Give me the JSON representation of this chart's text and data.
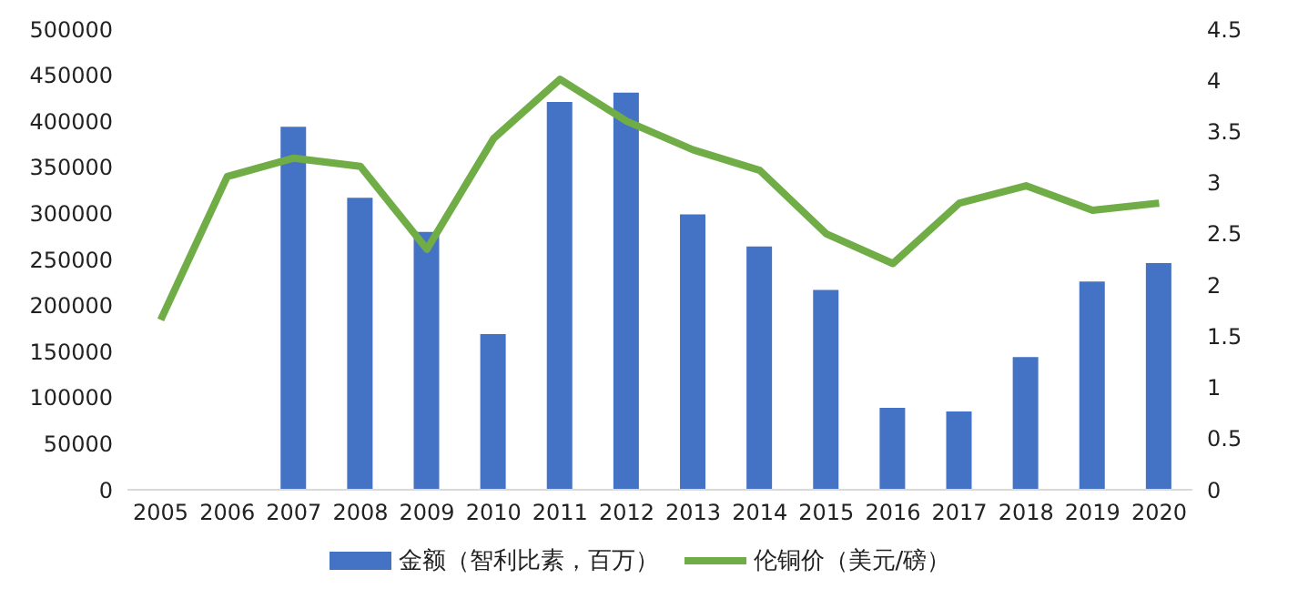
{
  "chart_data": {
    "type": "bar",
    "categories": [
      "2005",
      "2006",
      "2007",
      "2008",
      "2009",
      "2010",
      "2011",
      "2012",
      "2013",
      "2014",
      "2015",
      "2016",
      "2017",
      "2018",
      "2019",
      "2020"
    ],
    "series": [
      {
        "name": "金额（智利比素，百万）",
        "color": "#4472c4",
        "values": [
          null,
          null,
          394000,
          317000,
          280000,
          169000,
          421000,
          431000,
          299000,
          264000,
          217000,
          89000,
          85000,
          144000,
          226000,
          246000
        ]
      },
      {
        "name": "伦铜价（美元/磅）",
        "type": "line",
        "axis": "y2",
        "color": "#70ad47",
        "values": [
          1.66,
          3.06,
          3.24,
          3.16,
          2.35,
          3.43,
          4.01,
          3.6,
          3.32,
          3.12,
          2.5,
          2.21,
          2.8,
          2.97,
          2.73,
          2.8
        ]
      }
    ],
    "ylim": [
      0,
      500000
    ],
    "yticks": [
      0,
      50000,
      100000,
      150000,
      200000,
      250000,
      300000,
      350000,
      400000,
      450000,
      500000
    ],
    "y2lim": [
      0,
      4.5
    ],
    "y2ticks": [
      0,
      0.5,
      1,
      1.5,
      2,
      2.5,
      3,
      3.5,
      4,
      4.5
    ],
    "grid": false,
    "legend": "bottom",
    "marker": "none"
  }
}
